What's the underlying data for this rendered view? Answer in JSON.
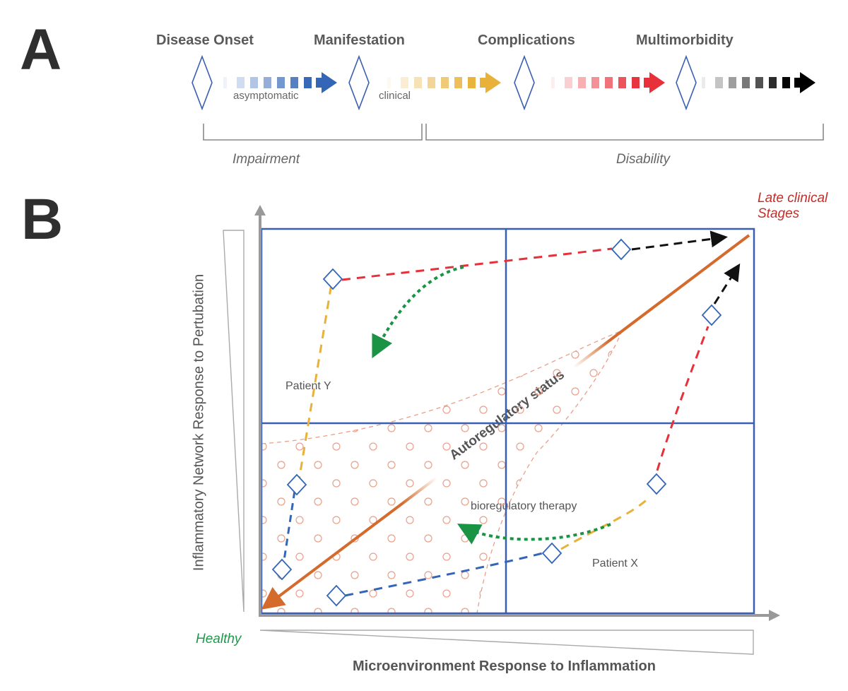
{
  "panel_a": {
    "letter": "A",
    "stages": [
      {
        "id": "disease-onset",
        "label": "Disease Onset"
      },
      {
        "id": "manifestation",
        "label": "Manifestation"
      },
      {
        "id": "complications",
        "label": "Complications"
      },
      {
        "id": "multimorbidity",
        "label": "Multimorbidity"
      }
    ],
    "arrows": [
      {
        "id": "blue",
        "color": "#3466b8",
        "label": "asymptomatic"
      },
      {
        "id": "yellow",
        "color": "#e8b23a",
        "label": "clinical"
      },
      {
        "id": "red",
        "color": "#e8303a",
        "label": ""
      },
      {
        "id": "black",
        "color": "#000000",
        "label": ""
      }
    ],
    "brackets": [
      {
        "id": "impairment",
        "label": "Impairment"
      },
      {
        "id": "disability",
        "label": "Disability"
      }
    ]
  },
  "panel_b": {
    "letter": "B",
    "y_axis_label": "Inflammatory Network Response to Pertubation",
    "x_axis_label": "Microenvironment Response to Inflammation",
    "origin_label": "Healthy",
    "corner_label_line1": "Late clinical",
    "corner_label_line2": "Stages",
    "autoregulatory_label": "Autoregulatory status",
    "therapy_label": "bioregulatory therapy",
    "patient_x_label": "Patient X",
    "patient_y_label": "Patient Y",
    "colors": {
      "grid": "#3a5fb0",
      "axis": "#999999",
      "trend": "#d46a2c",
      "healthy": "#1e9a4a",
      "late": "#c0302a",
      "dots": "#e8a08a",
      "therapy": "#1a9444",
      "blue_path": "#3466b8",
      "yellow_path": "#e8b23a",
      "red_path": "#e8303a",
      "black_path": "#111111"
    }
  }
}
